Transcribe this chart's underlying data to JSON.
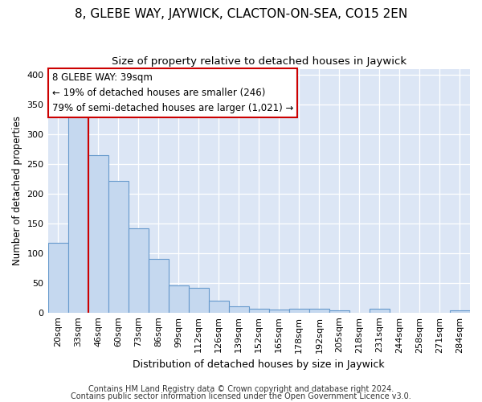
{
  "title": "8, GLEBE WAY, JAYWICK, CLACTON-ON-SEA, CO15 2EN",
  "subtitle": "Size of property relative to detached houses in Jaywick",
  "xlabel": "Distribution of detached houses by size in Jaywick",
  "ylabel": "Number of detached properties",
  "categories": [
    "20sqm",
    "33sqm",
    "46sqm",
    "60sqm",
    "73sqm",
    "86sqm",
    "99sqm",
    "112sqm",
    "126sqm",
    "139sqm",
    "152sqm",
    "165sqm",
    "178sqm",
    "192sqm",
    "205sqm",
    "218sqm",
    "231sqm",
    "244sqm",
    "258sqm",
    "271sqm",
    "284sqm"
  ],
  "values": [
    117,
    330,
    265,
    222,
    141,
    90,
    45,
    41,
    20,
    10,
    6,
    5,
    7,
    7,
    3,
    0,
    7,
    0,
    0,
    0,
    4
  ],
  "bar_color": "#c5d8ef",
  "bar_edge_color": "#6699cc",
  "vline_x": 1.5,
  "vline_color": "#cc0000",
  "annotation_line1": "8 GLEBE WAY: 39sqm",
  "annotation_line2": "← 19% of detached houses are smaller (246)",
  "annotation_line3": "79% of semi-detached houses are larger (1,021) →",
  "annotation_box_color": "#ffffff",
  "annotation_box_edge": "#cc0000",
  "ylim": [
    0,
    410
  ],
  "yticks": [
    0,
    50,
    100,
    150,
    200,
    250,
    300,
    350,
    400
  ],
  "plot_bg_color": "#dce6f5",
  "footer1": "Contains HM Land Registry data © Crown copyright and database right 2024.",
  "footer2": "Contains public sector information licensed under the Open Government Licence v3.0.",
  "title_fontsize": 11,
  "subtitle_fontsize": 9.5,
  "xlabel_fontsize": 9,
  "ylabel_fontsize": 8.5,
  "tick_fontsize": 8,
  "footer_fontsize": 7,
  "ann_fontsize": 8.5
}
